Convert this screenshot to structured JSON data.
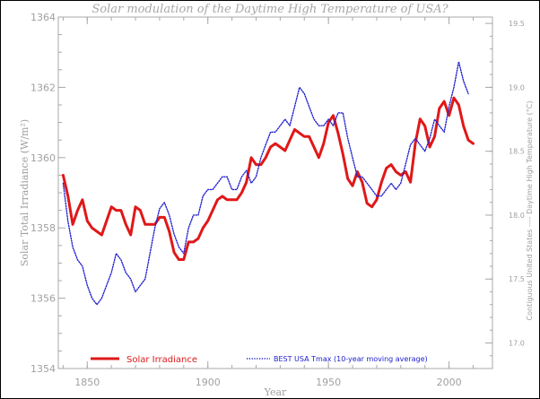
{
  "chart_data": {
    "type": "line",
    "title": "Solar modulation of the Daytime High Temperature of USA?",
    "xlabel": "Year",
    "ylabel": "Solar Total Irradiance (W/m²)",
    "y2label": "Contiguous United States ---- Daytime High Temperature (°C)",
    "xlim": [
      1838,
      2018
    ],
    "ylim": [
      1354,
      1364
    ],
    "y2lim": [
      16.8,
      19.55
    ],
    "x_ticks": [
      1850,
      1900,
      1950,
      2000
    ],
    "y_ticks": [
      1354,
      1356,
      1358,
      1360,
      1362,
      1364
    ],
    "y2_ticks": [
      17.0,
      17.5,
      18.0,
      18.5,
      19.0,
      19.5
    ],
    "legend": "bottom",
    "grid": false,
    "series": [
      {
        "name": "Solar Irradiance",
        "color": "#e01818",
        "axis": "left",
        "style": "solid",
        "x": [
          1840,
          1842,
          1844,
          1846,
          1848,
          1850,
          1852,
          1854,
          1856,
          1858,
          1860,
          1862,
          1864,
          1866,
          1868,
          1870,
          1872,
          1874,
          1876,
          1878,
          1880,
          1882,
          1884,
          1886,
          1888,
          1890,
          1892,
          1894,
          1896,
          1898,
          1900,
          1902,
          1904,
          1906,
          1908,
          1910,
          1912,
          1914,
          1916,
          1918,
          1920,
          1922,
          1924,
          1926,
          1928,
          1930,
          1932,
          1934,
          1936,
          1938,
          1940,
          1942,
          1944,
          1946,
          1948,
          1950,
          1952,
          1954,
          1956,
          1958,
          1960,
          1962,
          1964,
          1966,
          1968,
          1970,
          1972,
          1974,
          1976,
          1978,
          1980,
          1982,
          1984,
          1986,
          1988,
          1990,
          1992,
          1994,
          1996,
          1998,
          2000,
          2002,
          2004,
          2006,
          2008,
          2010
        ],
        "values": [
          1359.5,
          1358.9,
          1358.1,
          1358.5,
          1358.8,
          1358.2,
          1358.0,
          1357.9,
          1357.8,
          1358.2,
          1358.6,
          1358.5,
          1358.5,
          1358.1,
          1357.8,
          1358.6,
          1358.5,
          1358.1,
          1358.1,
          1358.1,
          1358.3,
          1358.3,
          1357.9,
          1357.3,
          1357.1,
          1357.1,
          1357.6,
          1357.6,
          1357.7,
          1358.0,
          1358.2,
          1358.5,
          1358.8,
          1358.9,
          1358.8,
          1358.8,
          1358.8,
          1359.0,
          1359.3,
          1360.0,
          1359.8,
          1359.8,
          1360.0,
          1360.3,
          1360.4,
          1360.3,
          1360.2,
          1360.5,
          1360.8,
          1360.7,
          1360.6,
          1360.6,
          1360.3,
          1360.0,
          1360.4,
          1361.0,
          1361.2,
          1360.7,
          1360.1,
          1359.4,
          1359.2,
          1359.6,
          1359.3,
          1358.7,
          1358.6,
          1358.8,
          1359.3,
          1359.7,
          1359.8,
          1359.6,
          1359.5,
          1359.6,
          1359.3,
          1360.4,
          1361.1,
          1360.9,
          1360.3,
          1360.6,
          1361.4,
          1361.6,
          1361.2,
          1361.7,
          1361.5,
          1360.9,
          1360.5,
          1360.4
        ]
      },
      {
        "name": "BEST USA Tmax (10-year moving average)",
        "color": "#2020d0",
        "axis": "right",
        "style": "dotted",
        "x": [
          1840,
          1842,
          1844,
          1846,
          1848,
          1850,
          1852,
          1854,
          1856,
          1858,
          1860,
          1862,
          1864,
          1866,
          1868,
          1870,
          1872,
          1874,
          1876,
          1878,
          1880,
          1882,
          1884,
          1886,
          1888,
          1890,
          1892,
          1894,
          1896,
          1898,
          1900,
          1902,
          1904,
          1906,
          1908,
          1910,
          1912,
          1914,
          1916,
          1918,
          1920,
          1922,
          1924,
          1926,
          1928,
          1930,
          1932,
          1934,
          1936,
          1938,
          1940,
          1942,
          1944,
          1946,
          1948,
          1950,
          1952,
          1954,
          1956,
          1958,
          1960,
          1962,
          1964,
          1966,
          1968,
          1970,
          1972,
          1974,
          1976,
          1978,
          1980,
          1982,
          1984,
          1986,
          1988,
          1990,
          1992,
          1994,
          1996,
          1998,
          2000,
          2002,
          2004,
          2006,
          2008
        ],
        "values": [
          18.25,
          17.95,
          17.75,
          17.65,
          17.6,
          17.45,
          17.35,
          17.3,
          17.35,
          17.45,
          17.55,
          17.7,
          17.65,
          17.55,
          17.5,
          17.4,
          17.45,
          17.5,
          17.7,
          17.9,
          18.05,
          18.1,
          18.0,
          17.85,
          17.75,
          17.7,
          17.9,
          18.0,
          18.0,
          18.15,
          18.2,
          18.2,
          18.25,
          18.3,
          18.3,
          18.2,
          18.2,
          18.3,
          18.35,
          18.25,
          18.3,
          18.45,
          18.55,
          18.65,
          18.65,
          18.7,
          18.75,
          18.7,
          18.85,
          19.0,
          18.95,
          18.85,
          18.75,
          18.7,
          18.7,
          18.75,
          18.7,
          18.8,
          18.8,
          18.6,
          18.45,
          18.3,
          18.3,
          18.25,
          18.2,
          18.15,
          18.15,
          18.2,
          18.25,
          18.2,
          18.25,
          18.4,
          18.55,
          18.6,
          18.55,
          18.5,
          18.6,
          18.75,
          18.7,
          18.65,
          18.85,
          19.0,
          19.2,
          19.05,
          18.95
        ]
      }
    ]
  }
}
